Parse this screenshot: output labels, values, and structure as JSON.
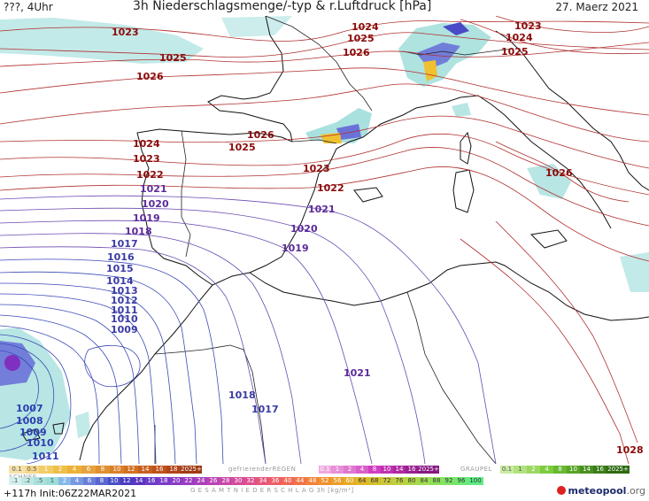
{
  "header": {
    "left": "???, 4Uhr",
    "title": "3h Niederschlagsmenge/-typ & r.Luftdruck [hPa]",
    "date": "27. Maerz 2021"
  },
  "isobar_labels": [
    {
      "text": "1023",
      "color": "#8b0a0a"
    },
    {
      "text": "1025",
      "color": "#8b0a0a"
    },
    {
      "text": "1026",
      "color": "#8b0a0a"
    },
    {
      "text": "1024",
      "color": "#8b0a0a"
    },
    {
      "text": "1025",
      "color": "#8b0a0a"
    },
    {
      "text": "1026",
      "color": "#8b0a0a"
    },
    {
      "text": "1023",
      "color": "#8b0a0a"
    },
    {
      "text": "1024",
      "color": "#8b0a0a"
    },
    {
      "text": "1025",
      "color": "#8b0a0a"
    },
    {
      "text": "1026",
      "color": "#8b0a0a"
    },
    {
      "text": "1025",
      "color": "#8b0a0a"
    },
    {
      "text": "1024",
      "color": "#8b0a0a"
    },
    {
      "text": "1023",
      "color": "#8b0a0a"
    },
    {
      "text": "1022",
      "color": "#8b0a0a"
    },
    {
      "text": "1023",
      "color": "#8b0a0a"
    },
    {
      "text": "1022",
      "color": "#8b0a0a"
    },
    {
      "text": "1026",
      "color": "#8b0a0a"
    },
    {
      "text": "1021",
      "color": "#5b2a9a"
    },
    {
      "text": "1020",
      "color": "#5b2a9a"
    },
    {
      "text": "1019",
      "color": "#5b2a9a"
    },
    {
      "text": "1018",
      "color": "#5b2a9a"
    },
    {
      "text": "1017",
      "color": "#3a3aa6"
    },
    {
      "text": "1016",
      "color": "#3a3aa6"
    },
    {
      "text": "1015",
      "color": "#3a3aa6"
    },
    {
      "text": "1014",
      "color": "#3a3aa6"
    },
    {
      "text": "1013",
      "color": "#3a3aa6"
    },
    {
      "text": "1012",
      "color": "#3a3aa6"
    },
    {
      "text": "1011",
      "color": "#3a3aa6"
    },
    {
      "text": "1010",
      "color": "#3a3aa6"
    },
    {
      "text": "1009",
      "color": "#3a3aa6"
    },
    {
      "text": "1021",
      "color": "#5b2a9a"
    },
    {
      "text": "1020",
      "color": "#5b2a9a"
    },
    {
      "text": "1019",
      "color": "#5b2a9a"
    },
    {
      "text": "1021",
      "color": "#5b2a9a"
    },
    {
      "text": "1018",
      "color": "#3a3aa6"
    },
    {
      "text": "1017",
      "color": "#3a3aa6"
    },
    {
      "text": "1007",
      "color": "#2a3fb0"
    },
    {
      "text": "1008",
      "color": "#2a3fb0"
    },
    {
      "text": "1009",
      "color": "#2a3fb0"
    },
    {
      "text": "1010",
      "color": "#2a3fb0"
    },
    {
      "text": "1011",
      "color": "#2a3fb0"
    },
    {
      "text": "1028",
      "color": "#8b0a0a"
    }
  ],
  "legend": {
    "snow_label": "SCHNEE",
    "freezing_rain_label": "gefrierenderREGEN",
    "graupel_label": "GRAUPEL",
    "total_label": "G E S A M T N I E D E R S C H L A G   3h   [kg/m²]",
    "snow_scale": [
      "0.1",
      "0.5",
      "1",
      "2",
      "4",
      "6",
      "8",
      "10",
      "12",
      "14",
      "16",
      "18",
      "2025+"
    ],
    "freezing_scale": [
      "0.1",
      "1",
      "2",
      "4",
      "8",
      "10",
      "14",
      "16",
      "2025+"
    ],
    "graupel_scale": [
      "0.1",
      "1",
      "2",
      "4",
      "8",
      "10",
      "14",
      "16",
      "2025+"
    ],
    "total_scale": [
      ".1",
      ".2",
      ".5",
      "1",
      "2",
      "4",
      "6",
      "8",
      "10",
      "12",
      "14",
      "16",
      "18",
      "20",
      "22",
      "24",
      "26",
      "28",
      "30",
      "32",
      "34",
      "36",
      "40",
      "44",
      "48",
      "52",
      "56",
      "60",
      "64",
      "68",
      "72",
      "76",
      "80",
      "84",
      "88",
      "92",
      "96",
      "100"
    ],
    "colors": {
      "snow": "#e6a23c",
      "freezing": "#d23cc0",
      "graupel": "#7ccc3c",
      "total_low": "#9adcd8",
      "total_mid": "#6a3cc8",
      "total_high": "#c8c83c"
    }
  },
  "footer": {
    "run_info": "+117h  Init:06Z22MAR2021",
    "brand": "meteopool",
    "brand_suffix": ".org"
  }
}
